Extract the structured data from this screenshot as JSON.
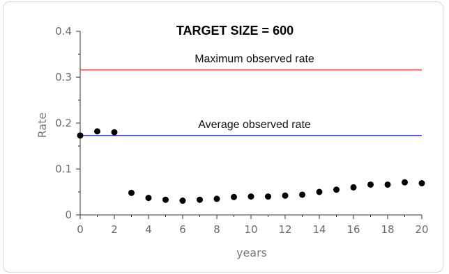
{
  "chart_data": {
    "type": "scatter",
    "title": "TARGET SIZE = 600",
    "xlabel": "years",
    "ylabel": "Rate",
    "xlim": [
      0,
      20
    ],
    "ylim": [
      0,
      0.4
    ],
    "x_ticks": [
      0,
      2,
      4,
      6,
      8,
      10,
      12,
      14,
      16,
      18,
      20
    ],
    "y_ticks": [
      0,
      0.1,
      0.2,
      0.3,
      0.4
    ],
    "x_tick_labels": [
      "0",
      "2",
      "4",
      "6",
      "8",
      "10",
      "12",
      "14",
      "16",
      "18",
      "20"
    ],
    "y_tick_labels": [
      "0",
      "0.1",
      "0.2",
      "0.3",
      "0.4"
    ],
    "grid": false,
    "series": [
      {
        "x": [
          0,
          1,
          2,
          3,
          4,
          5,
          6,
          7,
          8,
          9,
          10,
          11,
          12,
          13,
          14,
          15,
          16,
          17,
          18,
          19,
          20
        ],
        "y": [
          0.173,
          0.182,
          0.18,
          0.048,
          0.037,
          0.033,
          0.031,
          0.033,
          0.035,
          0.039,
          0.04,
          0.04,
          0.042,
          0.044,
          0.05,
          0.055,
          0.06,
          0.066,
          0.066,
          0.071,
          0.069
        ],
        "color": "#000000"
      }
    ],
    "reference_lines": [
      {
        "label": "Maximum observed rate",
        "y": 0.316,
        "color": "#ee3333"
      },
      {
        "label": "Average observed rate",
        "y": 0.173,
        "color": "#3333cc"
      }
    ]
  }
}
